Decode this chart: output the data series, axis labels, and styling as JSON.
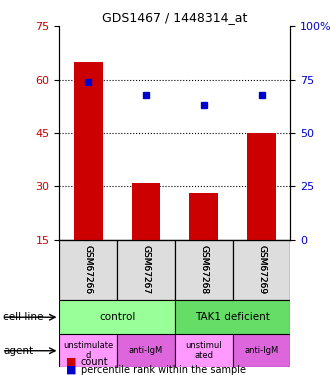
{
  "title": "GDS1467 / 1448314_at",
  "samples": [
    "GSM67266",
    "GSM67267",
    "GSM67268",
    "GSM67269"
  ],
  "bar_values": [
    65,
    31,
    28,
    45
  ],
  "dot_values": [
    74,
    68,
    63,
    68
  ],
  "bar_color": "#cc0000",
  "dot_color": "#0000cc",
  "ylim_left": [
    15,
    75
  ],
  "ylim_right": [
    0,
    100
  ],
  "yticks_left": [
    15,
    30,
    45,
    60,
    75
  ],
  "yticks_right": [
    0,
    25,
    50,
    75,
    100
  ],
  "ytick_labels_right": [
    "0",
    "25",
    "50",
    "75",
    "100%"
  ],
  "grid_values": [
    30,
    45,
    60
  ],
  "cell_line_labels": [
    "control",
    "TAK1 deficient"
  ],
  "cell_line_spans": [
    [
      0,
      2
    ],
    [
      2,
      4
    ]
  ],
  "cell_line_colors": [
    "#99ff99",
    "#66dd66"
  ],
  "agent_labels": [
    "unstimulate\nd",
    "anti-IgM",
    "unstimul\nated",
    "anti-IgM"
  ],
  "agent_colors": [
    "#ff99ff",
    "#dd66dd",
    "#ff99ff",
    "#dd66dd"
  ],
  "legend_count_color": "#cc0000",
  "legend_dot_color": "#0000cc",
  "bar_bottom": 15,
  "bar_width": 0.5
}
